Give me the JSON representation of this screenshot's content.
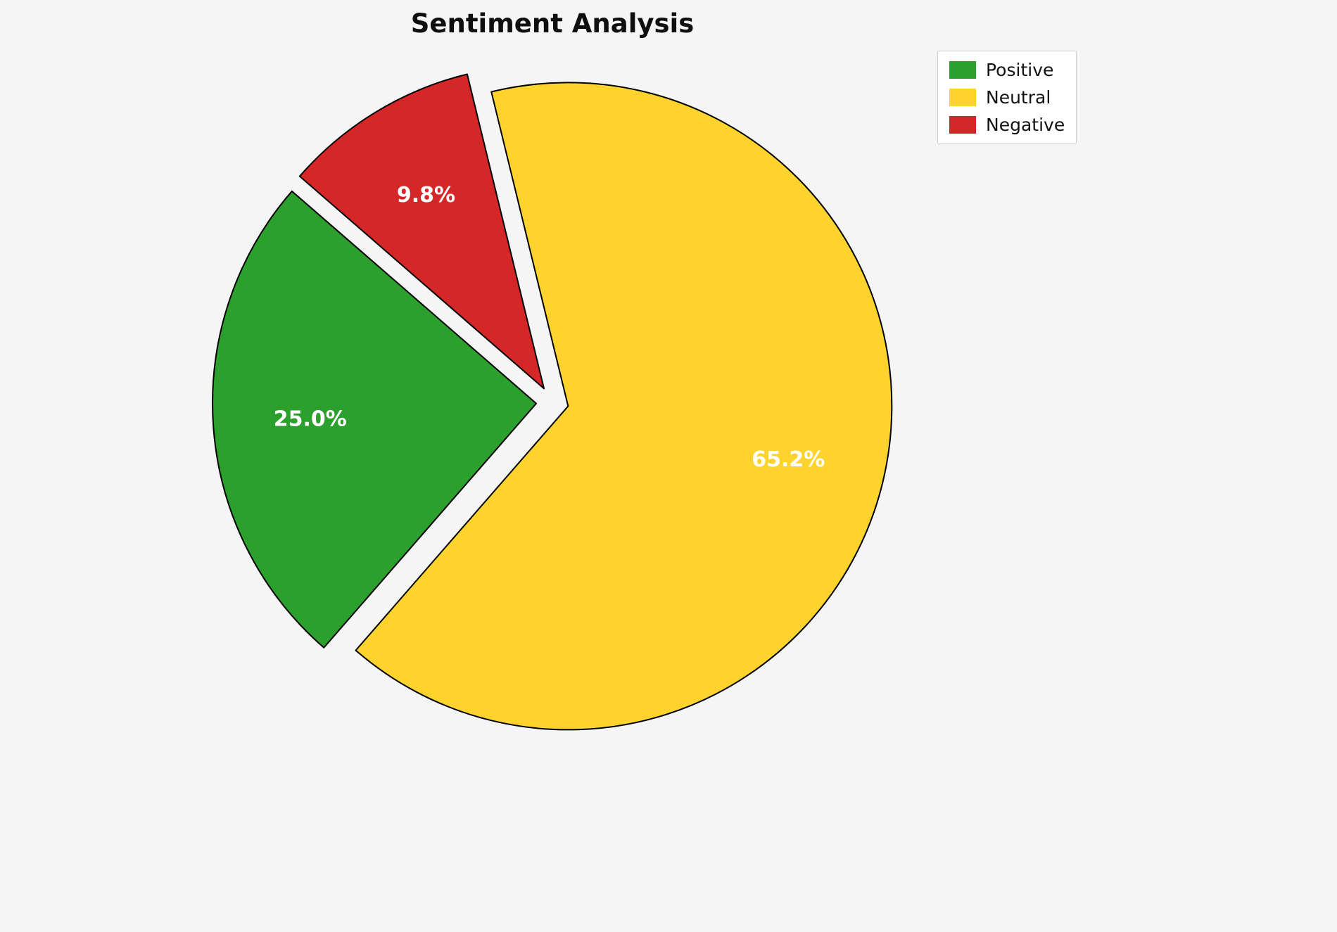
{
  "title": "Sentiment Analysis",
  "chart_data": {
    "type": "pie",
    "title": "Sentiment Analysis",
    "labels": [
      "Positive",
      "Neutral",
      "Negative"
    ],
    "values": [
      25.0,
      65.2,
      9.8
    ],
    "value_labels": [
      "25.0%",
      "65.2%",
      "9.8%"
    ],
    "colors": [
      "#2ca02c",
      "#ffd32e",
      "#d62728"
    ],
    "edge_color": "#000000",
    "label_color": "#ffffff",
    "background": "#f5f5f5",
    "start_angle": 139,
    "explode": [
      0.05,
      0.05,
      0.05
    ],
    "pct_distance": 0.7,
    "legend_position": "upper right",
    "legend_entries": [
      "Positive",
      "Neutral",
      "Negative"
    ]
  }
}
